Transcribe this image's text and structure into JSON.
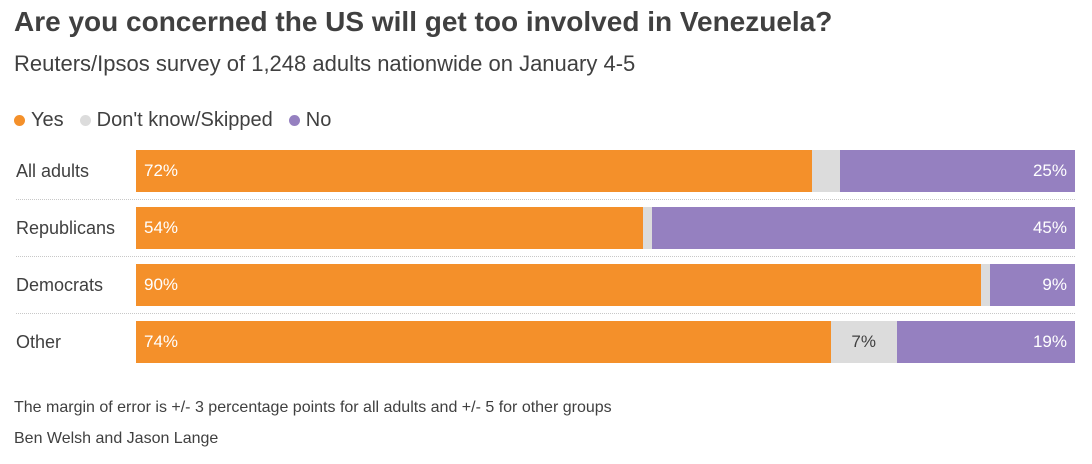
{
  "header": {
    "title": "Are you concerned the US will get too involved in Venezuela?",
    "subtitle": "Reuters/Ipsos survey of 1,248 adults nationwide on January 4-5"
  },
  "legend": [
    {
      "label": "Yes",
      "color": "#f4902a"
    },
    {
      "label": "Don't know/Skipped",
      "color": "#dcdcdc"
    },
    {
      "label": "No",
      "color": "#9580c0"
    }
  ],
  "chart_data": {
    "type": "bar",
    "orientation": "horizontal",
    "stacked": true,
    "categories": [
      "All adults",
      "Republicans",
      "Democrats",
      "Other"
    ],
    "series": [
      {
        "name": "Yes",
        "values": [
          72,
          54,
          90,
          74
        ],
        "labels": [
          "72%",
          "54%",
          "90%",
          "74%"
        ],
        "color": "#f4902a",
        "text_color": "#ffffff"
      },
      {
        "name": "Don't know/Skipped",
        "values": [
          3,
          1,
          1,
          7
        ],
        "labels": [
          "",
          "",
          "",
          "7%"
        ],
        "color": "#dcdcdc",
        "text_color": "#404040"
      },
      {
        "name": "No",
        "values": [
          25,
          45,
          9,
          19
        ],
        "labels": [
          "25%",
          "45%",
          "9%",
          "19%"
        ],
        "color": "#9580c0",
        "text_color": "#ffffff"
      }
    ],
    "xlim": [
      0,
      100
    ],
    "legend_position": "top-left",
    "grid": false
  },
  "footer": {
    "note": "The margin of error is +/- 3 percentage points for all adults and +/- 5 for other groups",
    "credit": "Ben Welsh and Jason Lange"
  }
}
